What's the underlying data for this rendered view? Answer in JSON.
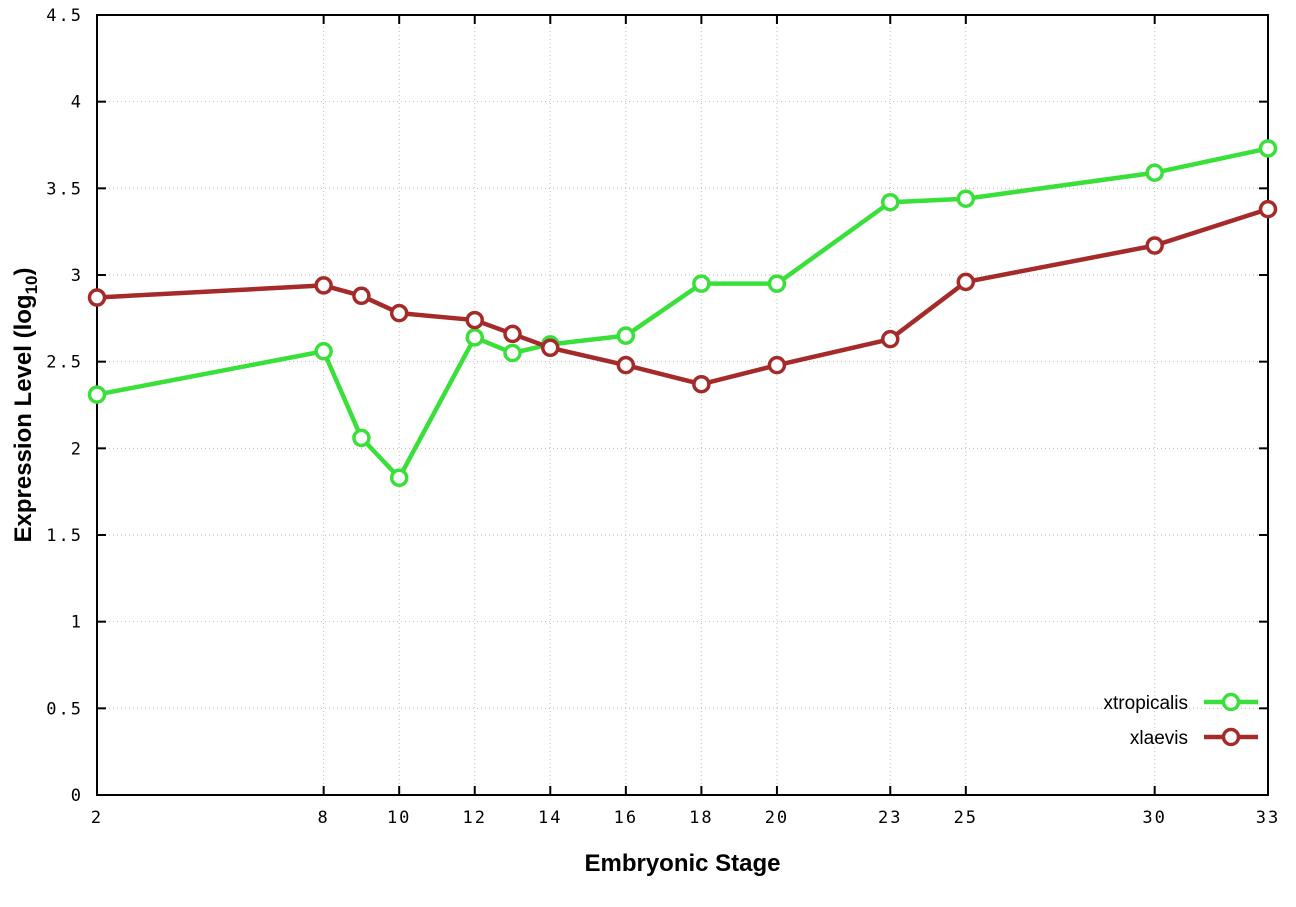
{
  "labels": {
    "x": "Embryonic Stage",
    "y_pre": "Expression Level (log",
    "y_sub": "10",
    "y_post": ")"
  },
  "chart_data": {
    "type": "line",
    "title": "",
    "xlabel": "Embryonic Stage",
    "ylabel": "Expression Level (log10)",
    "x": [
      2,
      8,
      9,
      10,
      12,
      13,
      14,
      16,
      18,
      20,
      23,
      25,
      30,
      33
    ],
    "series": [
      {
        "name": "xtropicalis",
        "color": "#3ae03a",
        "values": [
          2.31,
          2.56,
          2.06,
          1.83,
          2.64,
          2.55,
          2.6,
          2.65,
          2.95,
          2.95,
          3.42,
          3.44,
          3.59,
          3.73
        ]
      },
      {
        "name": "xlaevis",
        "color": "#a52a2a",
        "values": [
          2.87,
          2.94,
          2.88,
          2.78,
          2.74,
          2.66,
          2.58,
          2.48,
          2.37,
          2.48,
          2.63,
          2.96,
          3.17,
          3.38
        ]
      }
    ],
    "xlim": [
      2,
      33
    ],
    "ylim": [
      0,
      4.5
    ],
    "x_ticks": [
      2,
      8,
      10,
      12,
      14,
      16,
      18,
      20,
      23,
      25,
      30,
      33
    ],
    "x_tick_labels": [
      "2",
      "8",
      "10",
      "12",
      "14",
      "16",
      "18",
      "20",
      "23",
      "25",
      "30",
      "33"
    ],
    "y_ticks": [
      0,
      0.5,
      1,
      1.5,
      2,
      2.5,
      3,
      3.5,
      4,
      4.5
    ],
    "y_tick_labels": [
      "0",
      "0.5",
      "1",
      "1.5",
      "2",
      "2.5",
      "3",
      "3.5",
      "4",
      "4.5"
    ],
    "grid": true,
    "legend_position": "bottom-right",
    "marker": "open-circle"
  },
  "colors": {
    "background": "#ffffff",
    "axis": "#000000",
    "grid": "#bdbdbd",
    "marker_fill": "#ffffff"
  }
}
